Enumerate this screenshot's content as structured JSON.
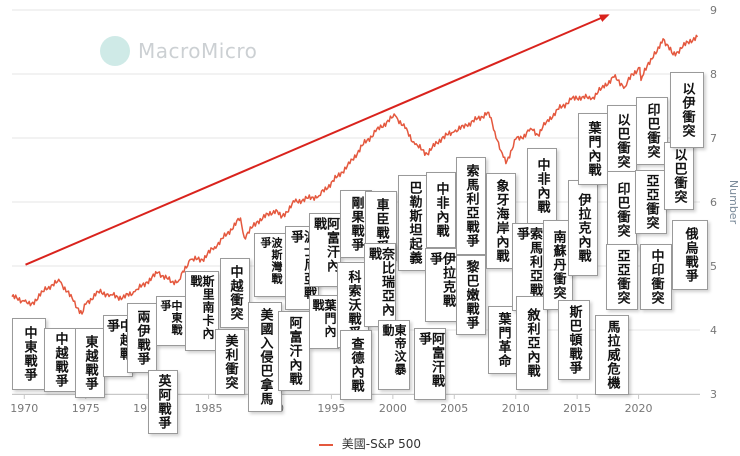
{
  "watermark": {
    "name": "MacroMicro"
  },
  "colors": {
    "series": "#e4583e",
    "arrow": "#d9231d",
    "grid": "#e6e6e6",
    "tick": "#777777"
  },
  "legend": {
    "label": "美國-S&P 500"
  },
  "chart_data": {
    "type": "line",
    "title": "",
    "xlabel": "",
    "ylabel": "Number",
    "xlim": [
      1969,
      2025
    ],
    "ylim": [
      3,
      9
    ],
    "x_ticks": [
      1970,
      1975,
      1980,
      1985,
      1990,
      1995,
      2000,
      2005,
      2010,
      2015,
      2020
    ],
    "x_tick_labels": [
      "1970",
      "1975",
      "1980",
      "1985",
      "1990",
      "1995",
      "2000",
      "2005",
      "2010",
      "2015",
      "2020"
    ],
    "y_ticks": [
      3,
      4,
      5,
      6,
      7,
      8,
      9
    ],
    "y_tick_labels": [
      "3",
      "4",
      "5",
      "6",
      "7",
      "8",
      "9"
    ],
    "grid": true,
    "series": [
      {
        "name": "美國-S&P 500",
        "x": [
          1969.0,
          1970.0,
          1970.5,
          1971.5,
          1972.0,
          1972.9,
          1973.5,
          1974.0,
          1974.7,
          1975.0,
          1976.0,
          1977.0,
          1978.0,
          1979.0,
          1980.0,
          1980.9,
          1982.0,
          1982.6,
          1983.5,
          1984.5,
          1985.5,
          1986.5,
          1987.6,
          1987.9,
          1989.0,
          1990.5,
          1990.9,
          1992.0,
          1994.0,
          1995.5,
          1996.5,
          1997.5,
          1998.6,
          1999.5,
          2000.2,
          2001.0,
          2001.8,
          2002.8,
          2003.2,
          2004.0,
          2005.0,
          2006.0,
          2007.8,
          2008.3,
          2008.8,
          2009.2,
          2010.0,
          2010.5,
          2011.2,
          2011.8,
          2012.5,
          2013.5,
          2014.5,
          2015.5,
          2016.1,
          2017.0,
          2018.0,
          2018.9,
          2019.5,
          2020.1,
          2020.2,
          2020.8,
          2021.5,
          2022.0,
          2022.8,
          2023.5,
          2024.0,
          2024.8
        ],
        "y": [
          4.52,
          4.45,
          4.38,
          4.6,
          4.68,
          4.76,
          4.6,
          4.45,
          4.25,
          4.4,
          4.6,
          4.55,
          4.5,
          4.6,
          4.75,
          4.9,
          4.75,
          4.78,
          5.1,
          5.1,
          5.3,
          5.5,
          5.75,
          5.45,
          5.7,
          5.88,
          5.75,
          6.0,
          6.1,
          6.4,
          6.6,
          6.88,
          7.1,
          7.25,
          7.35,
          7.15,
          6.9,
          6.75,
          6.85,
          7.0,
          7.1,
          7.2,
          7.4,
          7.1,
          6.8,
          6.6,
          6.98,
          7.0,
          7.15,
          7.05,
          7.25,
          7.45,
          7.6,
          7.65,
          7.6,
          7.78,
          7.95,
          7.8,
          8.0,
          8.1,
          7.9,
          8.18,
          8.35,
          8.55,
          8.3,
          8.4,
          8.5,
          8.58
        ]
      }
    ],
    "annotations": [
      {
        "text": "中東戰爭"
      },
      {
        "text": "中越戰爭"
      },
      {
        "text": "東越戰爭"
      },
      {
        "text": "中越戰爭"
      },
      {
        "text": "兩伊戰爭"
      },
      {
        "text": "中東戰爭"
      },
      {
        "text": "英阿戰爭"
      },
      {
        "text": "斯里南卡內戰"
      },
      {
        "text": "中越衝突"
      },
      {
        "text": "美利衝突"
      },
      {
        "text": "波斯灣戰爭"
      },
      {
        "text": "美國入侵巴拿馬"
      },
      {
        "text": "波士尼亞戰爭"
      },
      {
        "text": "阿富汗內戰"
      },
      {
        "text": "阿富汗內戰"
      },
      {
        "text": "葉門內戰"
      },
      {
        "text": "剛果戰爭"
      },
      {
        "text": "科索沃戰爭"
      },
      {
        "text": "車臣戰爭"
      },
      {
        "text": "奈比瑞亞內戰"
      },
      {
        "text": "查德內戰"
      },
      {
        "text": "巴勒斯坦起義"
      },
      {
        "text": "東帝汶暴動"
      },
      {
        "text": "中非內戰"
      },
      {
        "text": "伊拉克戰爭"
      },
      {
        "text": "阿富汗戰爭"
      },
      {
        "text": "索馬利亞戰爭"
      },
      {
        "text": "黎巴嫩戰爭"
      },
      {
        "text": "象牙海岸內戰"
      },
      {
        "text": "葉門革命"
      },
      {
        "text": "中非內戰"
      },
      {
        "text": "索馬利亞戰爭"
      },
      {
        "text": "敘利亞內戰"
      },
      {
        "text": "南蘇丹衝突"
      },
      {
        "text": "伊拉克內戰"
      },
      {
        "text": "斯巴頓戰爭"
      },
      {
        "text": "葉門內戰"
      },
      {
        "text": "以巴衝突"
      },
      {
        "text": "馬拉威危機"
      },
      {
        "text": "印巴衝突"
      },
      {
        "text": "印巴衝突"
      },
      {
        "text": "亞亞衝突"
      },
      {
        "text": "亞亞衝突"
      },
      {
        "text": "以巴衝突"
      },
      {
        "text": "以伊衝突"
      },
      {
        "text": "中印衝突"
      },
      {
        "text": "俄烏戰爭"
      }
    ]
  }
}
